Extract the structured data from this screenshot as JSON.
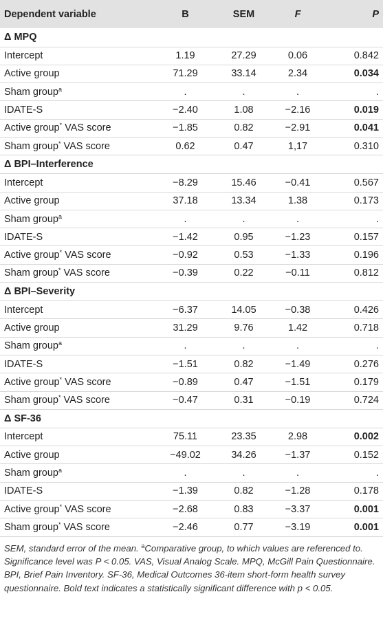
{
  "header": {
    "dependent_variable": "Dependent variable",
    "b": "B",
    "sem": "SEM",
    "f": "F",
    "p": "P"
  },
  "sections": [
    {
      "title": "Δ MPQ",
      "rows": [
        {
          "label": "Intercept",
          "sup": "",
          "b": "1.19",
          "sem": "27.29",
          "f": "0.06",
          "p": "0.842",
          "p_bold": false
        },
        {
          "label": "Active group",
          "sup": "",
          "b": "71.29",
          "sem": "33.14",
          "f": "2.34",
          "p": "0.034",
          "p_bold": true
        },
        {
          "label": "Sham group",
          "sup": "a",
          "b": ".",
          "sem": ".",
          "f": ".",
          "p": ".",
          "p_bold": false
        },
        {
          "label": "IDATE-S",
          "sup": "",
          "b": "−2.40",
          "sem": "1.08",
          "f": "−2.16",
          "p": "0.019",
          "p_bold": true
        },
        {
          "label": "Active group",
          "sup": "*",
          "suffix": " VAS score",
          "b": "−1.85",
          "sem": "0.82",
          "f": "−2.91",
          "p": "0.041",
          "p_bold": true
        },
        {
          "label": "Sham group",
          "sup": "*",
          "suffix": " VAS score",
          "b": "0.62",
          "sem": "0.47",
          "f": "1,17",
          "p": "0.310",
          "p_bold": false
        }
      ]
    },
    {
      "title": "Δ BPI–Interference",
      "rows": [
        {
          "label": "Intercept",
          "sup": "",
          "b": "−8.29",
          "sem": "15.46",
          "f": "−0.41",
          "p": "0.567",
          "p_bold": false
        },
        {
          "label": "Active group",
          "sup": "",
          "b": "37.18",
          "sem": "13.34",
          "f": "1.38",
          "p": "0.173",
          "p_bold": false
        },
        {
          "label": "Sham group",
          "sup": "a",
          "b": ".",
          "sem": ".",
          "f": ".",
          "p": ".",
          "p_bold": false
        },
        {
          "label": "IDATE-S",
          "sup": "",
          "b": "−1.42",
          "sem": "0.95",
          "f": "−1.23",
          "p": "0.157",
          "p_bold": false
        },
        {
          "label": "Active group",
          "sup": "*",
          "suffix": " VAS score",
          "b": "−0.92",
          "sem": "0.53",
          "f": "−1.33",
          "p": "0.196",
          "p_bold": false
        },
        {
          "label": "Sham group",
          "sup": "*",
          "suffix": " VAS score",
          "b": "−0.39",
          "sem": "0.22",
          "f": "−0.11",
          "p": "0.812",
          "p_bold": false
        }
      ]
    },
    {
      "title": "Δ BPI–Severity",
      "rows": [
        {
          "label": "Intercept",
          "sup": "",
          "b": "−6.37",
          "sem": "14.05",
          "f": "−0.38",
          "p": "0.426",
          "p_bold": false
        },
        {
          "label": "Active group",
          "sup": "",
          "b": "31.29",
          "sem": "9.76",
          "f": "1.42",
          "p": "0.718",
          "p_bold": false
        },
        {
          "label": "Sham group",
          "sup": "a",
          "b": ".",
          "sem": ".",
          "f": ".",
          "p": ".",
          "p_bold": false
        },
        {
          "label": "IDATE-S",
          "sup": "",
          "b": "−1.51",
          "sem": "0.82",
          "f": "−1.49",
          "p": "0.276",
          "p_bold": false
        },
        {
          "label": "Active group",
          "sup": "*",
          "suffix": " VAS score",
          "b": "−0.89",
          "sem": "0.47",
          "f": "−1.51",
          "p": "0.179",
          "p_bold": false
        },
        {
          "label": "Sham group",
          "sup": "*",
          "suffix": " VAS score",
          "b": "−0.47",
          "sem": "0.31",
          "f": "−0.19",
          "p": "0.724",
          "p_bold": false
        }
      ]
    },
    {
      "title": "Δ SF-36",
      "rows": [
        {
          "label": "Intercept",
          "sup": "",
          "b": "75.11",
          "sem": "23.35",
          "f": "2.98",
          "p": "0.002",
          "p_bold": true
        },
        {
          "label": "Active group",
          "sup": "",
          "b": "−49.02",
          "sem": "34.26",
          "f": "−1.37",
          "p": "0.152",
          "p_bold": false
        },
        {
          "label": "Sham group",
          "sup": "a",
          "b": ".",
          "sem": ".",
          "f": ".",
          "p": ".",
          "p_bold": false
        },
        {
          "label": "IDATE-S",
          "sup": "",
          "b": "−1.39",
          "sem": "0.82",
          "f": "−1.28",
          "p": "0.178",
          "p_bold": false
        },
        {
          "label": "Active group",
          "sup": "*",
          "suffix": " VAS score",
          "b": "−2.68",
          "sem": "0.83",
          "f": "−3.37",
          "p": "0.001",
          "p_bold": true
        },
        {
          "label": "Sham group",
          "sup": "*",
          "suffix": " VAS score",
          "b": "−2.46",
          "sem": "0.77",
          "f": "−3.19",
          "p": "0.001",
          "p_bold": true
        }
      ]
    }
  ],
  "footnote": {
    "part1": "SEM, standard error of the mean. ",
    "sup": "a",
    "part2": "Comparative group, to which values are referenced to. Significance level was P < 0.05. VAS, Visual Analog Scale. MPQ, McGill Pain Questionnaire. BPI, Brief Pain Inventory. SF-36, Medical Outcomes 36-item short-form health survey questionnaire. Bold text indicates a statistically significant difference with p < 0.05."
  }
}
